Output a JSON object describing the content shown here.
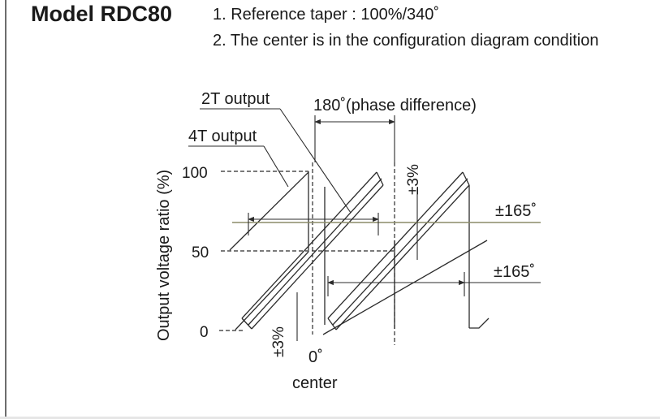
{
  "header": {
    "model": "Model RDC80",
    "note1": "1. Reference taper : 100%/340˚",
    "note2": "2. The center is in the configuration diagram condition"
  },
  "axis": {
    "ylabel": "Output voltage ratio (%)",
    "ticks": [
      "100",
      "50",
      "0"
    ]
  },
  "labels": {
    "output_2t": "2T output",
    "output_4t": "4T output",
    "phase_difference": "180˚(phase difference)",
    "tolerance_upper": "±3%",
    "tolerance_lower": "±3%",
    "angle_upper": "±165˚",
    "angle_lower": "±165˚",
    "zero_degree": "0˚",
    "center": "center"
  },
  "colors": {
    "line": "#2b2b2b",
    "angle_line": "#8c8c68"
  }
}
